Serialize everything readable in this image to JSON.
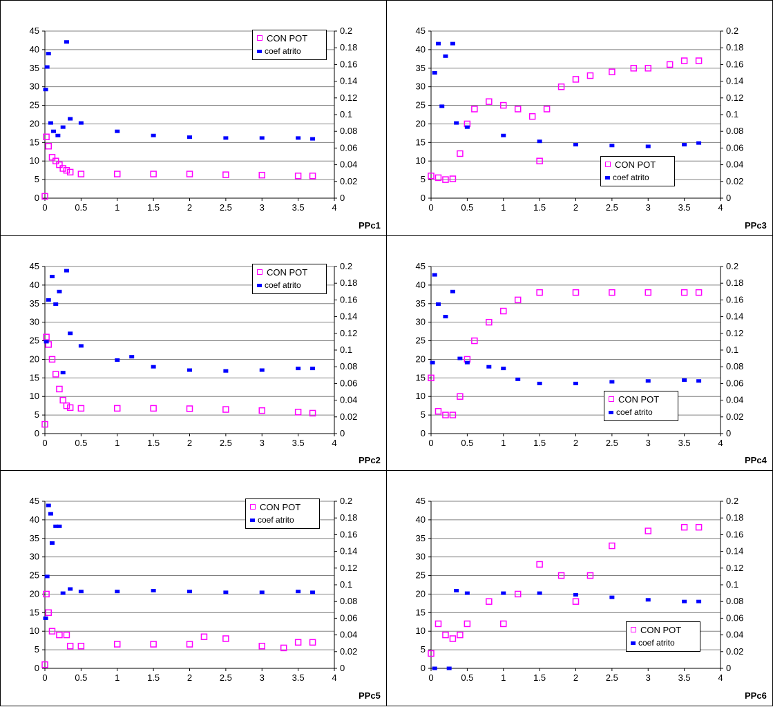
{
  "colors": {
    "con_pot": "#ff00ff",
    "coef_atrito": "#0000ff",
    "grid": "#808080",
    "axis": "#000000"
  },
  "legend": {
    "con_pot": "CON POT",
    "coef_atrito": "coef atrito"
  },
  "panel_labels": {
    "ppc1": "PPc1",
    "ppc2": "PPc2",
    "ppc3": "PPc3",
    "ppc4": "PPc4",
    "ppc5": "PPc5",
    "ppc6": "PPc6"
  },
  "chart_data": [
    {
      "id": "ppc1",
      "type": "scatter",
      "title": "",
      "label": "PPc1",
      "x_ticks": [
        "0",
        "0.5",
        "1",
        "1.5",
        "2",
        "2.5",
        "3",
        "3.5",
        "4"
      ],
      "y_left_ticks": [
        "0",
        "5",
        "10",
        "15",
        "20",
        "25",
        "30",
        "35",
        "40",
        "45"
      ],
      "y_right_ticks": [
        "0",
        "0.02",
        "0.04",
        "0.06",
        "0.08",
        "0.1",
        "0.12",
        "0.14",
        "0.16",
        "0.18",
        "0.2"
      ],
      "xlim": [
        0,
        4
      ],
      "ylim_left": [
        0,
        45
      ],
      "ylim_right": [
        0,
        0.2
      ],
      "grid": "horizontal",
      "legend_position": "top-right",
      "series": [
        {
          "name": "CON POT",
          "axis": "left",
          "marker": "open-square",
          "color": "#ff00ff",
          "x": [
            0,
            0.02,
            0.05,
            0.1,
            0.15,
            0.2,
            0.25,
            0.3,
            0.35,
            0.5,
            1,
            1.5,
            2,
            2.5,
            3,
            3.5,
            3.7
          ],
          "y": [
            0.5,
            16.5,
            14,
            11,
            10,
            9,
            8,
            7.5,
            7,
            6.5,
            6.5,
            6.5,
            6.5,
            6.3,
            6.2,
            6.0,
            6.0
          ]
        },
        {
          "name": "coef atrito",
          "axis": "right",
          "marker": "filled-rect",
          "color": "#0000ff",
          "x": [
            0.01,
            0.03,
            0.05,
            0.08,
            0.12,
            0.18,
            0.25,
            0.3,
            0.35,
            0.5,
            1,
            1.5,
            2,
            2.5,
            3,
            3.5,
            3.7
          ],
          "y": [
            0.13,
            0.157,
            0.173,
            0.09,
            0.08,
            0.075,
            0.085,
            0.187,
            0.095,
            0.09,
            0.08,
            0.075,
            0.073,
            0.072,
            0.072,
            0.072,
            0.071
          ]
        }
      ]
    },
    {
      "id": "ppc3",
      "type": "scatter",
      "title": "",
      "label": "PPc3",
      "x_ticks": [
        "0",
        "0.5",
        "1",
        "1.5",
        "2",
        "2.5",
        "3",
        "3.5",
        "4"
      ],
      "y_left_ticks": [
        "0",
        "5",
        "10",
        "15",
        "20",
        "25",
        "30",
        "35",
        "40",
        "45"
      ],
      "y_right_ticks": [
        "0",
        "0.02",
        "0.04",
        "0.06",
        "0.08",
        "0.1",
        "0.12",
        "0.14",
        "0.16",
        "0.18",
        "0.2"
      ],
      "xlim": [
        0,
        4
      ],
      "ylim_left": [
        0,
        45
      ],
      "ylim_right": [
        0,
        0.2
      ],
      "grid": "horizontal",
      "legend_position": "bottom-right",
      "series": [
        {
          "name": "CON POT",
          "axis": "left",
          "marker": "open-square",
          "color": "#ff00ff",
          "x": [
            0,
            0.1,
            0.2,
            0.3,
            0.4,
            0.5,
            0.6,
            0.8,
            1,
            1.2,
            1.4,
            1.5,
            1.6,
            1.8,
            2,
            2.2,
            2.5,
            2.8,
            3,
            3.3,
            3.5,
            3.7
          ],
          "y": [
            6,
            5.5,
            5,
            5.2,
            12,
            20,
            24,
            26,
            25,
            24,
            22,
            10,
            24,
            30,
            32,
            33,
            34,
            35,
            35,
            36,
            37,
            37
          ]
        },
        {
          "name": "coef atrito",
          "axis": "right",
          "marker": "filled-rect",
          "color": "#0000ff",
          "x": [
            0.05,
            0.1,
            0.15,
            0.2,
            0.3,
            0.35,
            0.5,
            1,
            1.5,
            2,
            2.5,
            3,
            3.5,
            3.7
          ],
          "y": [
            0.15,
            0.185,
            0.11,
            0.17,
            0.185,
            0.09,
            0.085,
            0.075,
            0.068,
            0.064,
            0.063,
            0.062,
            0.064,
            0.066
          ]
        }
      ]
    },
    {
      "id": "ppc2",
      "type": "scatter",
      "title": "",
      "label": "PPc2",
      "x_ticks": [
        "0",
        "0.5",
        "1",
        "1.5",
        "2",
        "2.5",
        "3",
        "3.5",
        "4"
      ],
      "y_left_ticks": [
        "0",
        "5",
        "10",
        "15",
        "20",
        "25",
        "30",
        "35",
        "40",
        "45"
      ],
      "y_right_ticks": [
        "0",
        "0.02",
        "0.04",
        "0.06",
        "0.08",
        "0.1",
        "0.12",
        "0.14",
        "0.16",
        "0.18",
        "0.2"
      ],
      "xlim": [
        0,
        4
      ],
      "ylim_left": [
        0,
        45
      ],
      "ylim_right": [
        0,
        0.2
      ],
      "grid": "horizontal",
      "legend_position": "top-right",
      "series": [
        {
          "name": "CON POT",
          "axis": "left",
          "marker": "open-square",
          "color": "#ff00ff",
          "x": [
            0,
            0.02,
            0.05,
            0.1,
            0.15,
            0.2,
            0.25,
            0.3,
            0.35,
            0.5,
            1,
            1.5,
            2,
            2.5,
            3,
            3.5,
            3.7
          ],
          "y": [
            2.5,
            26,
            24,
            20,
            16,
            12,
            9,
            7.5,
            7,
            6.8,
            6.8,
            6.8,
            6.7,
            6.5,
            6.2,
            5.8,
            5.5
          ]
        },
        {
          "name": "coef atrito",
          "axis": "right",
          "marker": "filled-rect",
          "color": "#0000ff",
          "x": [
            0.02,
            0.05,
            0.1,
            0.15,
            0.2,
            0.25,
            0.3,
            0.35,
            0.5,
            1,
            1.2,
            1.5,
            2,
            2.5,
            3,
            3.5,
            3.7
          ],
          "y": [
            0.11,
            0.16,
            0.188,
            0.155,
            0.17,
            0.073,
            0.195,
            0.12,
            0.105,
            0.088,
            0.092,
            0.08,
            0.076,
            0.075,
            0.076,
            0.078,
            0.078
          ]
        }
      ]
    },
    {
      "id": "ppc4",
      "type": "scatter",
      "title": "",
      "label": "PPc4",
      "x_ticks": [
        "0",
        "0.5",
        "1",
        "1.5",
        "2",
        "2.5",
        "3",
        "3.5",
        "4"
      ],
      "y_left_ticks": [
        "0",
        "5",
        "10",
        "15",
        "20",
        "25",
        "30",
        "35",
        "40",
        "45"
      ],
      "y_right_ticks": [
        "0",
        "0.02",
        "0.04",
        "0.06",
        "0.08",
        "0.1",
        "0.12",
        "0.14",
        "0.16",
        "0.18",
        "0.2"
      ],
      "xlim": [
        0,
        4
      ],
      "ylim_left": [
        0,
        45
      ],
      "ylim_right": [
        0,
        0.2
      ],
      "grid": "horizontal",
      "legend_position": "bottom-right",
      "series": [
        {
          "name": "CON POT",
          "axis": "left",
          "marker": "open-square",
          "color": "#ff00ff",
          "x": [
            0,
            0.1,
            0.2,
            0.3,
            0.4,
            0.5,
            0.6,
            0.8,
            1,
            1.2,
            1.5,
            2,
            2.5,
            3,
            3.5,
            3.7
          ],
          "y": [
            15,
            6,
            5,
            5,
            10,
            20,
            25,
            30,
            33,
            36,
            38,
            38,
            38,
            38,
            38,
            38
          ]
        },
        {
          "name": "coef atrito",
          "axis": "right",
          "marker": "filled-rect",
          "color": "#0000ff",
          "x": [
            0.02,
            0.05,
            0.1,
            0.2,
            0.3,
            0.4,
            0.5,
            0.8,
            1,
            1.2,
            1.5,
            2,
            2.5,
            3,
            3.5,
            3.7
          ],
          "y": [
            0.085,
            0.19,
            0.155,
            0.14,
            0.17,
            0.09,
            0.085,
            0.08,
            0.078,
            0.065,
            0.06,
            0.06,
            0.062,
            0.063,
            0.064,
            0.063
          ]
        }
      ]
    },
    {
      "id": "ppc5",
      "type": "scatter",
      "title": "",
      "label": "PPc5",
      "x_ticks": [
        "0",
        "0.5",
        "1",
        "1.5",
        "2",
        "2.5",
        "3",
        "3.5",
        "4"
      ],
      "y_left_ticks": [
        "0",
        "5",
        "10",
        "15",
        "20",
        "25",
        "30",
        "35",
        "40",
        "45"
      ],
      "y_right_ticks": [
        "0",
        "0.02",
        "0.04",
        "0.06",
        "0.08",
        "0.1",
        "0.12",
        "0.14",
        "0.16",
        "0.18",
        "0.2"
      ],
      "xlim": [
        0,
        4
      ],
      "ylim_left": [
        0,
        45
      ],
      "ylim_right": [
        0,
        0.2
      ],
      "grid": "horizontal",
      "legend_position": "top-right",
      "series": [
        {
          "name": "CON POT",
          "axis": "left",
          "marker": "open-square",
          "color": "#ff00ff",
          "x": [
            0,
            0.02,
            0.05,
            0.1,
            0.2,
            0.3,
            0.35,
            0.5,
            1,
            1.5,
            2,
            2.2,
            2.5,
            3,
            3.3,
            3.5,
            3.7
          ],
          "y": [
            1,
            20,
            15,
            10,
            9,
            9,
            6,
            6,
            6.5,
            6.5,
            6.5,
            8.5,
            8,
            6,
            5.5,
            7,
            7
          ]
        },
        {
          "name": "coef atrito",
          "axis": "right",
          "marker": "filled-rect",
          "color": "#0000ff",
          "x": [
            0.01,
            0.03,
            0.05,
            0.08,
            0.1,
            0.15,
            0.2,
            0.25,
            0.35,
            0.5,
            1,
            1.5,
            2,
            2.5,
            3,
            3.5,
            3.7
          ],
          "y": [
            0.06,
            0.11,
            0.195,
            0.185,
            0.15,
            0.17,
            0.17,
            0.09,
            0.095,
            0.092,
            0.092,
            0.093,
            0.092,
            0.091,
            0.091,
            0.092,
            0.091
          ]
        }
      ]
    },
    {
      "id": "ppc6",
      "type": "scatter",
      "title": "",
      "label": "PPc6",
      "x_ticks": [
        "0",
        "0.5",
        "1",
        "1.5",
        "2",
        "2.5",
        "3",
        "3.5",
        "4"
      ],
      "y_left_ticks": [
        "0",
        "5",
        "10",
        "15",
        "20",
        "25",
        "30",
        "35",
        "40",
        "45"
      ],
      "y_right_ticks": [
        "0",
        "0.02",
        "0.04",
        "0.06",
        "0.08",
        "0.1",
        "0.12",
        "0.14",
        "0.16",
        "0.18",
        "0.2"
      ],
      "xlim": [
        0,
        4
      ],
      "ylim_left": [
        0,
        45
      ],
      "ylim_right": [
        0,
        0.2
      ],
      "grid": "horizontal",
      "legend_position": "bottom-right",
      "series": [
        {
          "name": "CON POT",
          "axis": "left",
          "marker": "open-square",
          "color": "#ff00ff",
          "x": [
            0,
            0.1,
            0.2,
            0.3,
            0.4,
            0.5,
            0.8,
            1,
            1.2,
            1.5,
            1.8,
            2,
            2.2,
            2.5,
            3,
            3.5,
            3.7
          ],
          "y": [
            4,
            12,
            9,
            8,
            9,
            12,
            18,
            12,
            20,
            28,
            25,
            18,
            25,
            33,
            37,
            38,
            38
          ]
        },
        {
          "name": "coef atrito",
          "axis": "right",
          "marker": "filled-rect",
          "color": "#0000ff",
          "x": [
            0.05,
            0.25,
            0.35,
            0.5,
            1,
            1.5,
            2,
            2.5,
            3,
            3.5,
            3.7
          ],
          "y": [
            0.0,
            0.0,
            0.093,
            0.09,
            0.09,
            0.09,
            0.088,
            0.085,
            0.082,
            0.08,
            0.08
          ]
        }
      ]
    }
  ]
}
